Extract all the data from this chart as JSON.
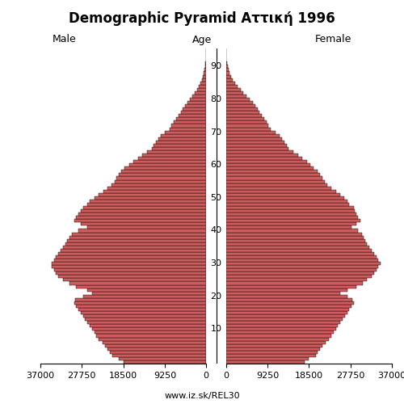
{
  "title": "Demographic Pyramid Aττική 1996",
  "label_male": "Male",
  "label_female": "Female",
  "label_age": "Age",
  "source": "www.iz.sk/REL30",
  "xlim": 37000,
  "bar_color": "#cd5c5c",
  "bar_edge_color": "#000000",
  "bar_linewidth": 0.3,
  "ages": [
    0,
    1,
    2,
    3,
    4,
    5,
    6,
    7,
    8,
    9,
    10,
    11,
    12,
    13,
    14,
    15,
    16,
    17,
    18,
    19,
    20,
    21,
    22,
    23,
    24,
    25,
    26,
    27,
    28,
    29,
    30,
    31,
    32,
    33,
    34,
    35,
    36,
    37,
    38,
    39,
    40,
    41,
    42,
    43,
    44,
    45,
    46,
    47,
    48,
    49,
    50,
    51,
    52,
    53,
    54,
    55,
    56,
    57,
    58,
    59,
    60,
    61,
    62,
    63,
    64,
    65,
    66,
    67,
    68,
    69,
    70,
    71,
    72,
    73,
    74,
    75,
    76,
    77,
    78,
    79,
    80,
    81,
    82,
    83,
    84,
    85,
    86,
    87,
    88,
    89,
    90,
    91,
    92,
    93,
    94,
    95
  ],
  "male": [
    18500,
    19500,
    21000,
    21500,
    22000,
    22500,
    23200,
    24000,
    24500,
    25000,
    25500,
    26000,
    26500,
    27000,
    27500,
    28000,
    28500,
    29000,
    29500,
    29200,
    27500,
    25500,
    26500,
    29000,
    30500,
    32000,
    33000,
    33500,
    34000,
    34500,
    34500,
    34000,
    33500,
    33000,
    32500,
    32000,
    31500,
    31000,
    30500,
    30000,
    28500,
    26500,
    28000,
    29500,
    29000,
    28500,
    28000,
    27500,
    26500,
    26000,
    25000,
    24000,
    23000,
    22000,
    21200,
    20500,
    20000,
    19500,
    19000,
    18200,
    17200,
    16200,
    15200,
    14200,
    13200,
    12200,
    11700,
    11200,
    10700,
    10200,
    9200,
    8200,
    7700,
    7200,
    6700,
    6200,
    5700,
    5200,
    4700,
    4200,
    3600,
    3100,
    2600,
    2100,
    1600,
    1300,
    1000,
    750,
    530,
    370,
    210,
    140,
    90,
    55,
    32,
    12
  ],
  "female": [
    17500,
    18500,
    20000,
    20500,
    21000,
    21500,
    22200,
    23000,
    23500,
    24000,
    24500,
    25000,
    25500,
    26000,
    26500,
    27000,
    27500,
    28000,
    28500,
    28200,
    27000,
    25500,
    27000,
    29000,
    30500,
    31500,
    32500,
    33000,
    33500,
    34000,
    34500,
    34000,
    33500,
    33000,
    32500,
    32000,
    31500,
    31000,
    30700,
    30300,
    29500,
    28000,
    29000,
    30000,
    29500,
    29000,
    28700,
    28500,
    27500,
    27000,
    26300,
    25500,
    24500,
    23500,
    22500,
    22000,
    21500,
    21000,
    20500,
    19500,
    18700,
    18000,
    17000,
    16000,
    15000,
    14000,
    13500,
    13000,
    12500,
    12000,
    11000,
    10000,
    9500,
    9000,
    8500,
    8000,
    7500,
    7000,
    6500,
    6000,
    5200,
    4500,
    3800,
    3200,
    2600,
    2000,
    1500,
    1100,
    800,
    520,
    320,
    200,
    120,
    70,
    40,
    18
  ],
  "ytick_positions": [
    10,
    20,
    30,
    40,
    50,
    60,
    70,
    80,
    90
  ],
  "title_fontsize": 12,
  "label_fontsize": 9,
  "tick_fontsize": 8,
  "source_fontsize": 8
}
